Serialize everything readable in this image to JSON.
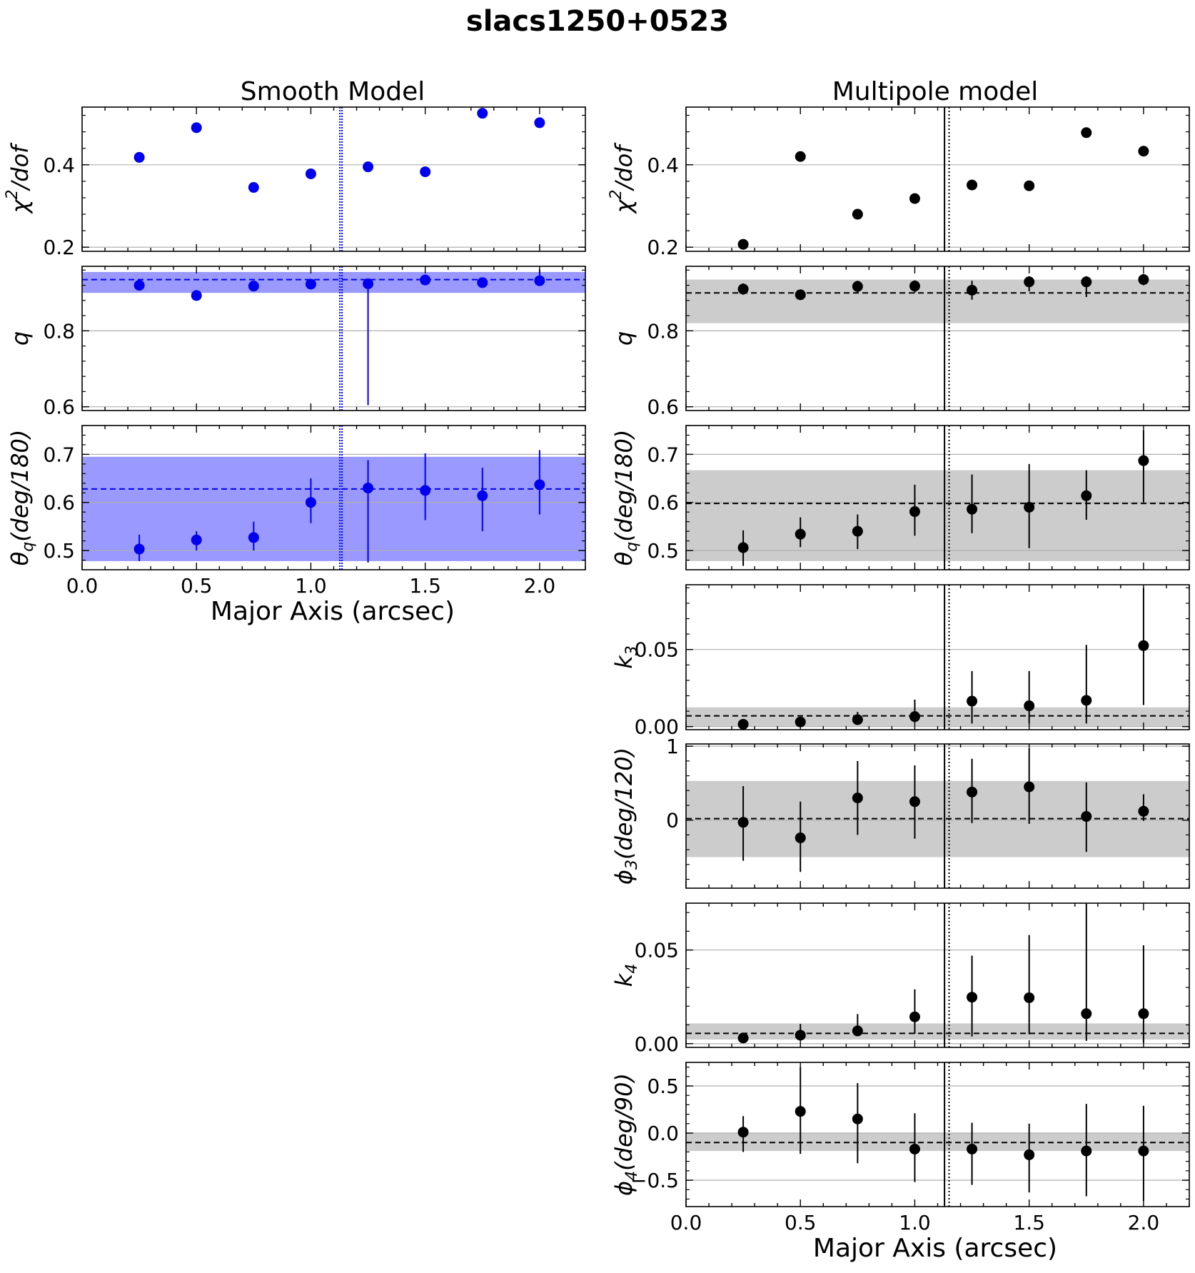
{
  "figure_title": "slacs1250+0523",
  "columns": [
    {
      "title": "Smooth Model",
      "xlabel": "Major Axis (arcsec)"
    },
    {
      "title": "Multipole model",
      "xlabel": "Major Axis (arcsec)"
    }
  ],
  "colors": {
    "smooth": "#0000ee",
    "smooth_band": "#9999ff",
    "multipole": "#000000",
    "multipole_band": "#cccccc",
    "grid": "#b0b0b0"
  },
  "chart_data": [
    {
      "type": "scatter",
      "column": "Smooth Model",
      "row": 0,
      "ylabel": "χ²/dof",
      "ylim": [
        0.19,
        0.54
      ],
      "yticks": [
        0.2,
        0.4
      ],
      "ytick_labels": [
        "0.2",
        "0.4"
      ],
      "x": [
        0.25,
        0.5,
        0.75,
        1.0,
        1.25,
        1.5,
        1.75,
        2.0
      ],
      "y": [
        0.418,
        0.49,
        0.345,
        0.378,
        0.395,
        0.383,
        0.525,
        0.502
      ],
      "xlim": [
        0,
        2.2
      ],
      "vlines": [
        1.13,
        1.13
      ],
      "vline_style": "dotted",
      "color": "smooth"
    },
    {
      "type": "scatter",
      "column": "Smooth Model",
      "row": 1,
      "ylabel": "q",
      "ylim": [
        0.59,
        0.97
      ],
      "yticks": [
        0.6,
        0.8
      ],
      "ytick_labels": [
        "0.6",
        "0.8"
      ],
      "x": [
        0.25,
        0.5,
        0.75,
        1.0,
        1.25,
        1.5,
        1.75,
        2.0
      ],
      "y": [
        0.92,
        0.893,
        0.918,
        0.923,
        0.924,
        0.934,
        0.927,
        0.932
      ],
      "yerr_low": [
        0.005,
        0.005,
        0.005,
        0.005,
        0.32,
        0.01,
        0.01,
        0.01
      ],
      "yerr_high": [
        0.005,
        0.005,
        0.005,
        0.005,
        0.005,
        0.01,
        0.01,
        0.03
      ],
      "band": [
        0.9,
        0.955
      ],
      "median": 0.935,
      "xlim": [
        0,
        2.2
      ],
      "vlines": [
        1.13,
        1.13
      ],
      "vline_style": "dotted",
      "color": "smooth"
    },
    {
      "type": "scatter",
      "column": "Smooth Model",
      "row": 2,
      "ylabel": "θ_q(deg/180)",
      "ylim": [
        0.46,
        0.76
      ],
      "yticks": [
        0.5,
        0.6,
        0.7
      ],
      "ytick_labels": [
        "0.5",
        "0.6",
        "0.7"
      ],
      "x": [
        0.25,
        0.5,
        0.75,
        1.0,
        1.25,
        1.5,
        1.75,
        2.0
      ],
      "y": [
        0.503,
        0.522,
        0.527,
        0.6,
        0.63,
        0.625,
        0.614,
        0.637
      ],
      "yerr_low": [
        0.025,
        0.022,
        0.027,
        0.043,
        0.155,
        0.062,
        0.074,
        0.062
      ],
      "yerr_high": [
        0.03,
        0.018,
        0.033,
        0.05,
        0.058,
        0.077,
        0.058,
        0.072
      ],
      "band": [
        0.478,
        0.695
      ],
      "median": 0.628,
      "xlim": [
        0,
        2.2
      ],
      "xticks": [
        0.0,
        0.5,
        1.0,
        1.5,
        2.0
      ],
      "xtick_labels": [
        "0.0",
        "0.5",
        "1.0",
        "1.5",
        "2.0"
      ],
      "vlines": [
        1.13,
        1.13
      ],
      "vline_style": "dotted",
      "color": "smooth"
    },
    {
      "type": "scatter",
      "column": "Multipole model",
      "row": 0,
      "ylabel": "χ²/dof",
      "ylim": [
        0.19,
        0.54
      ],
      "yticks": [
        0.2,
        0.4
      ],
      "ytick_labels": [
        "0.2",
        "0.4"
      ],
      "x": [
        0.25,
        0.5,
        0.75,
        1.0,
        1.25,
        1.5,
        1.75,
        2.0
      ],
      "y": [
        0.207,
        0.42,
        0.28,
        0.318,
        0.351,
        0.349,
        0.478,
        0.433
      ],
      "xlim": [
        0,
        2.2
      ],
      "vlines": [
        1.13,
        1.15
      ],
      "vline_style": "solid-dotted",
      "color": "multipole"
    },
    {
      "type": "scatter",
      "column": "Multipole model",
      "row": 1,
      "ylabel": "q",
      "ylim": [
        0.59,
        0.97
      ],
      "yticks": [
        0.6,
        0.8
      ],
      "ytick_labels": [
        "0.6",
        "0.8"
      ],
      "x": [
        0.25,
        0.5,
        0.75,
        1.0,
        1.25,
        1.5,
        1.75,
        2.0
      ],
      "y": [
        0.91,
        0.895,
        0.917,
        0.918,
        0.907,
        0.929,
        0.929,
        0.935
      ],
      "yerr_low": [
        0.015,
        0.01,
        0.015,
        0.018,
        0.025,
        0.025,
        0.04,
        0.015
      ],
      "yerr_high": [
        0.015,
        0.01,
        0.015,
        0.015,
        0.025,
        0.015,
        0.015,
        0.015
      ],
      "band": [
        0.82,
        0.935
      ],
      "median": 0.9,
      "xlim": [
        0,
        2.2
      ],
      "vlines": [
        1.13,
        1.15
      ],
      "vline_style": "solid-dotted",
      "color": "multipole"
    },
    {
      "type": "scatter",
      "column": "Multipole model",
      "row": 2,
      "ylabel": "θ_q(deg/180)",
      "ylim": [
        0.46,
        0.76
      ],
      "yticks": [
        0.5,
        0.6,
        0.7
      ],
      "ytick_labels": [
        "0.5",
        "0.6",
        "0.7"
      ],
      "x": [
        0.25,
        0.5,
        0.75,
        1.0,
        1.25,
        1.5,
        1.75,
        2.0
      ],
      "y": [
        0.506,
        0.534,
        0.54,
        0.581,
        0.586,
        0.59,
        0.614,
        0.687
      ],
      "yerr_low": [
        0.038,
        0.027,
        0.037,
        0.05,
        0.05,
        0.085,
        0.05,
        0.087
      ],
      "yerr_high": [
        0.036,
        0.035,
        0.035,
        0.056,
        0.072,
        0.09,
        0.053,
        0.063
      ],
      "band": [
        0.478,
        0.667
      ],
      "median": 0.598,
      "xlim": [
        0,
        2.2
      ],
      "vlines": [
        1.13,
        1.15
      ],
      "vline_style": "solid-dotted",
      "color": "multipole"
    },
    {
      "type": "scatter",
      "column": "Multipole model",
      "row": 3,
      "ylabel": "k_3",
      "ylim": [
        -0.002,
        0.092
      ],
      "yticks": [
        0.0,
        0.05
      ],
      "ytick_labels": [
        "0.00",
        "0.05"
      ],
      "x": [
        0.25,
        0.5,
        0.75,
        1.0,
        1.25,
        1.5,
        1.75,
        2.0
      ],
      "y": [
        0.0015,
        0.003,
        0.0045,
        0.0065,
        0.0165,
        0.0135,
        0.017,
        0.0525
      ],
      "yerr_low": [
        0.0,
        0.001,
        0.002,
        0.004,
        0.0145,
        0.0115,
        0.015,
        0.0385
      ],
      "yerr_high": [
        0.0,
        0.001,
        0.005,
        0.011,
        0.0195,
        0.0225,
        0.036,
        0.0375
      ],
      "band": [
        0.0,
        0.0125
      ],
      "median": 0.007,
      "xlim": [
        0,
        2.2
      ],
      "vlines": [
        1.13,
        1.15
      ],
      "vline_style": "solid-dotted",
      "color": "multipole"
    },
    {
      "type": "scatter",
      "column": "Multipole model",
      "row": 4,
      "ylabel": "ϕ_3(deg/120)",
      "ylim": [
        -0.92,
        1.03
      ],
      "yticks": [
        0,
        1
      ],
      "ytick_labels": [
        "0",
        "1"
      ],
      "x": [
        0.25,
        0.5,
        0.75,
        1.0,
        1.25,
        1.5,
        1.75,
        2.0
      ],
      "y": [
        -0.03,
        -0.24,
        0.3,
        0.25,
        0.38,
        0.45,
        0.05,
        0.12
      ],
      "yerr_low": [
        0.52,
        0.46,
        0.5,
        0.5,
        0.42,
        0.5,
        0.48,
        0.13
      ],
      "yerr_high": [
        0.49,
        0.49,
        0.5,
        0.49,
        0.45,
        0.52,
        0.46,
        0.23
      ],
      "band": [
        -0.5,
        0.53
      ],
      "median": 0.02,
      "xlim": [
        0,
        2.2
      ],
      "vlines": [
        1.13,
        1.15
      ],
      "vline_style": "solid-dotted",
      "color": "multipole"
    },
    {
      "type": "scatter",
      "column": "Multipole model",
      "row": 5,
      "ylabel": "k_4",
      "ylim": [
        -0.002,
        0.075
      ],
      "yticks": [
        0.0,
        0.05
      ],
      "ytick_labels": [
        "0.00",
        "0.05"
      ],
      "x": [
        0.25,
        0.5,
        0.75,
        1.0,
        1.25,
        1.5,
        1.75,
        2.0
      ],
      "y": [
        0.003,
        0.0045,
        0.0068,
        0.0143,
        0.0248,
        0.0245,
        0.016,
        0.016
      ],
      "yerr_low": [
        0.0,
        0.001,
        0.002,
        0.009,
        0.021,
        0.0195,
        0.0145,
        0.0155
      ],
      "yerr_high": [
        0.0,
        0.006,
        0.009,
        0.0147,
        0.0222,
        0.0335,
        0.0587,
        0.0365
      ],
      "band": [
        0.0022,
        0.0108
      ],
      "median": 0.0055,
      "xlim": [
        0,
        2.2
      ],
      "vlines": [
        1.13,
        1.15
      ],
      "vline_style": "solid-dotted",
      "color": "multipole"
    },
    {
      "type": "scatter",
      "column": "Multipole model",
      "row": 6,
      "ylabel": "ϕ_4(deg/90)",
      "ylim": [
        -0.78,
        0.75
      ],
      "yticks": [
        -0.5,
        0.0,
        0.5
      ],
      "ytick_labels": [
        "−0.5",
        "0.0",
        "0.5"
      ],
      "x": [
        0.25,
        0.5,
        0.75,
        1.0,
        1.25,
        1.5,
        1.75,
        2.0
      ],
      "y": [
        0.01,
        0.23,
        0.15,
        -0.17,
        -0.17,
        -0.23,
        -0.19,
        -0.19
      ],
      "yerr_low": [
        0.21,
        0.45,
        0.47,
        0.35,
        0.38,
        0.4,
        0.48,
        0.53
      ],
      "yerr_high": [
        0.17,
        0.47,
        0.38,
        0.38,
        0.28,
        0.33,
        0.5,
        0.48
      ],
      "band": [
        -0.19,
        0.0
      ],
      "median": -0.1,
      "xlim": [
        0,
        2.2
      ],
      "xticks": [
        0.0,
        0.5,
        1.0,
        1.5,
        2.0
      ],
      "xtick_labels": [
        "0.0",
        "0.5",
        "1.0",
        "1.5",
        "2.0"
      ],
      "vlines": [
        1.13,
        1.15
      ],
      "vline_style": "solid-dotted",
      "color": "multipole"
    }
  ]
}
